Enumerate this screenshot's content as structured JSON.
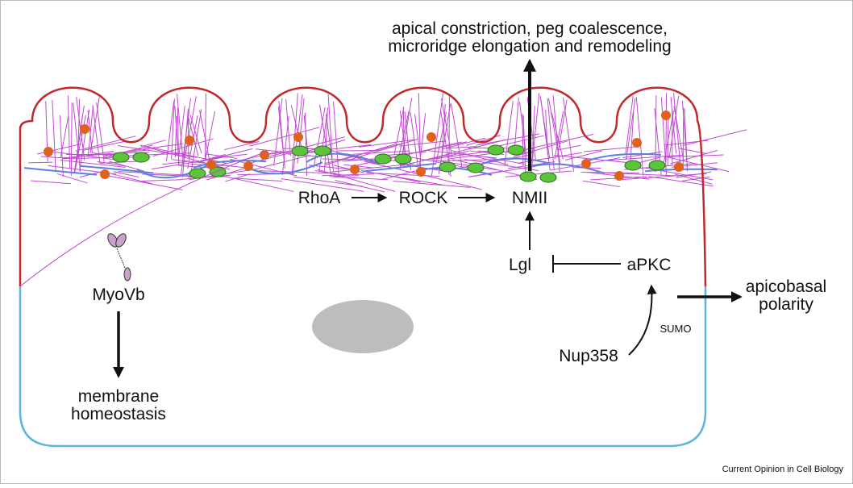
{
  "outcome": {
    "lines": [
      "apical constriction, peg coalescence,",
      "microridge elongation and remodeling"
    ]
  },
  "nodes": {
    "rhoa": "RhoA",
    "rock": "ROCK",
    "nmii": "NMII",
    "lgl": "Lgl",
    "apkc": "aPKC",
    "nup358": "Nup358",
    "myovb": "MyoVb"
  },
  "edge_labels": {
    "sumo": "SUMO"
  },
  "membrane_outcome": {
    "lines": [
      "membrane",
      "homeostasis"
    ]
  },
  "polarity_outcome": {
    "lines": [
      "apicobasal",
      "polarity"
    ]
  },
  "footer": {
    "source": "Current Opinion in Cell Biology"
  }
}
